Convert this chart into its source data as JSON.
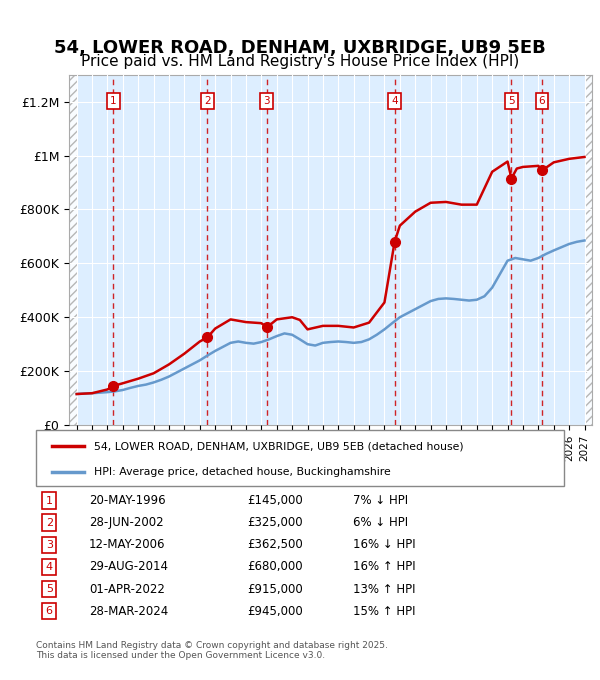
{
  "title": "54, LOWER ROAD, DENHAM, UXBRIDGE, UB9 5EB",
  "subtitle": "Price paid vs. HM Land Registry's House Price Index (HPI)",
  "title_fontsize": 13,
  "subtitle_fontsize": 11,
  "background_color": "#ffffff",
  "plot_bg_color": "#ddeeff",
  "grid_color": "#ffffff",
  "xmin": 1993.5,
  "xmax": 2027.5,
  "ymin": 0,
  "ymax": 1300000,
  "yticks": [
    0,
    200000,
    400000,
    600000,
    800000,
    1000000,
    1200000
  ],
  "ytick_labels": [
    "£0",
    "£200K",
    "£400K",
    "£600K",
    "£800K",
    "£1M",
    "£1.2M"
  ],
  "xtick_start": 1994,
  "xtick_end": 2027,
  "transactions": [
    {
      "num": 1,
      "date": "20-MAY-1996",
      "year": 1996.38,
      "price": 145000,
      "pct": "7%",
      "dir": "↓",
      "label": "1"
    },
    {
      "num": 2,
      "date": "28-JUN-2002",
      "year": 2002.49,
      "price": 325000,
      "pct": "6%",
      "dir": "↓",
      "label": "2"
    },
    {
      "num": 3,
      "date": "12-MAY-2006",
      "year": 2006.36,
      "price": 362500,
      "pct": "16%",
      "dir": "↓",
      "label": "3"
    },
    {
      "num": 4,
      "date": "29-AUG-2014",
      "year": 2014.66,
      "price": 680000,
      "pct": "16%",
      "dir": "↑",
      "label": "4"
    },
    {
      "num": 5,
      "date": "01-APR-2022",
      "year": 2022.25,
      "price": 915000,
      "pct": "13%",
      "dir": "↑",
      "label": "5"
    },
    {
      "num": 6,
      "date": "28-MAR-2024",
      "year": 2024.24,
      "price": 945000,
      "pct": "15%",
      "dir": "↑",
      "label": "6"
    }
  ],
  "red_line_color": "#cc0000",
  "blue_line_color": "#6699cc",
  "marker_color": "#cc0000",
  "dashed_line_color": "#cc0000",
  "box_color": "#cc0000",
  "legend_line1": "54, LOWER ROAD, DENHAM, UXBRIDGE, UB9 5EB (detached house)",
  "legend_line2": "HPI: Average price, detached house, Buckinghamshire",
  "table_rows": [
    [
      "1",
      "20-MAY-1996",
      "£145,000",
      "7% ↓ HPI"
    ],
    [
      "2",
      "28-JUN-2002",
      "£325,000",
      "6% ↓ HPI"
    ],
    [
      "3",
      "12-MAY-2006",
      "£362,500",
      "16% ↓ HPI"
    ],
    [
      "4",
      "29-AUG-2014",
      "£680,000",
      "16% ↑ HPI"
    ],
    [
      "5",
      "01-APR-2022",
      "£915,000",
      "13% ↑ HPI"
    ],
    [
      "6",
      "28-MAR-2024",
      "£945,000",
      "15% ↑ HPI"
    ]
  ],
  "footer": "Contains HM Land Registry data © Crown copyright and database right 2025.\nThis data is licensed under the Open Government Licence v3.0.",
  "hpi_data_years": [
    1994,
    1994.5,
    1995,
    1995.5,
    1996,
    1996.5,
    1997,
    1997.5,
    1998,
    1998.5,
    1999,
    1999.5,
    2000,
    2000.5,
    2001,
    2001.5,
    2002,
    2002.5,
    2003,
    2003.5,
    2004,
    2004.5,
    2005,
    2005.5,
    2006,
    2006.5,
    2007,
    2007.5,
    2008,
    2008.5,
    2009,
    2009.5,
    2010,
    2010.5,
    2011,
    2011.5,
    2012,
    2012.5,
    2013,
    2013.5,
    2014,
    2014.5,
    2015,
    2015.5,
    2016,
    2016.5,
    2017,
    2017.5,
    2018,
    2018.5,
    2019,
    2019.5,
    2020,
    2020.5,
    2021,
    2021.5,
    2022,
    2022.5,
    2023,
    2023.5,
    2024,
    2024.5,
    2025,
    2025.5,
    2026,
    2026.5,
    2027
  ],
  "hpi_data_values": [
    115000,
    117000,
    118000,
    120000,
    122000,
    125000,
    130000,
    138000,
    145000,
    150000,
    158000,
    168000,
    180000,
    195000,
    210000,
    225000,
    240000,
    258000,
    275000,
    290000,
    305000,
    310000,
    305000,
    302000,
    308000,
    318000,
    330000,
    340000,
    335000,
    318000,
    300000,
    295000,
    305000,
    308000,
    310000,
    308000,
    305000,
    308000,
    318000,
    335000,
    355000,
    378000,
    400000,
    415000,
    430000,
    445000,
    460000,
    468000,
    470000,
    468000,
    465000,
    462000,
    465000,
    478000,
    510000,
    560000,
    610000,
    620000,
    615000,
    610000,
    620000,
    635000,
    648000,
    660000,
    672000,
    680000,
    685000
  ],
  "price_data_years": [
    1994,
    1995,
    1996,
    1996.38,
    1997,
    1998,
    1999,
    2000,
    2001,
    2002,
    2002.49,
    2003,
    2004,
    2005,
    2006,
    2006.36,
    2007,
    2008,
    2008.5,
    2009,
    2010,
    2011,
    2012,
    2013,
    2014,
    2014.66,
    2015,
    2016,
    2017,
    2018,
    2019,
    2020,
    2021,
    2022,
    2022.25,
    2022.6,
    2023,
    2024,
    2024.24,
    2025,
    2026,
    2027
  ],
  "price_data_values": [
    115000,
    118000,
    132000,
    145000,
    155000,
    172000,
    192000,
    225000,
    265000,
    310000,
    325000,
    358000,
    392000,
    382000,
    378000,
    362500,
    392000,
    400000,
    390000,
    355000,
    368000,
    368000,
    362000,
    380000,
    455000,
    680000,
    740000,
    792000,
    825000,
    828000,
    818000,
    818000,
    940000,
    978000,
    915000,
    952000,
    958000,
    962000,
    945000,
    975000,
    988000,
    995000
  ]
}
